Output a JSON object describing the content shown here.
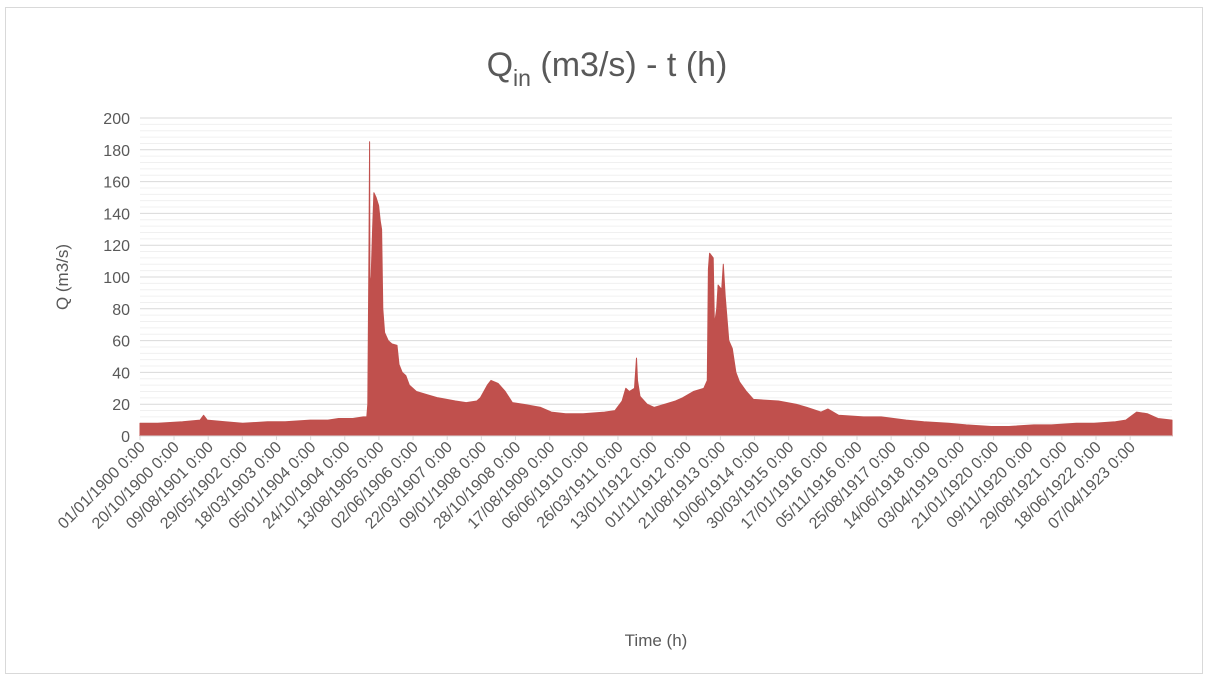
{
  "chart_data": {
    "type": "area",
    "title": {
      "main": "Q",
      "subscript": "in",
      "rest": " (m3/s) - t (h)"
    },
    "xlabel": "Time (h)",
    "ylabel": "Q (m3/s)",
    "ylim": [
      0,
      200
    ],
    "yticks": [
      0,
      20,
      40,
      60,
      80,
      100,
      120,
      140,
      160,
      180,
      200
    ],
    "xlim": [
      "1900-01-01",
      "1924-03-31"
    ],
    "xtick_dates": [
      "1900-01-01",
      "1900-10-20",
      "1901-08-09",
      "1902-05-29",
      "1903-03-18",
      "1904-01-05",
      "1904-10-24",
      "1905-08-13",
      "1906-06-02",
      "1907-03-22",
      "1908-01-09",
      "1908-10-28",
      "1909-08-17",
      "1910-06-06",
      "1911-03-26",
      "1912-01-13",
      "1912-11-01",
      "1913-08-21",
      "1914-06-10",
      "1915-03-30",
      "1916-01-17",
      "1916-11-05",
      "1917-08-25",
      "1918-06-14",
      "1919-04-03",
      "1920-01-21",
      "1920-11-09",
      "1921-08-29",
      "1922-06-18",
      "1923-04-07"
    ],
    "xtick_labels": [
      "01/01/1900 0:00",
      "20/10/1900 0:00",
      "09/08/1901 0:00",
      "29/05/1902 0:00",
      "18/03/1903 0:00",
      "05/01/1904 0:00",
      "24/10/1904 0:00",
      "13/08/1905 0:00",
      "02/06/1906 0:00",
      "22/03/1907 0:00",
      "09/01/1908 0:00",
      "28/10/1908 0:00",
      "17/08/1909 0:00",
      "06/06/1910 0:00",
      "26/03/1911 0:00",
      "13/01/1912 0:00",
      "01/11/1912 0:00",
      "21/08/1913 0:00",
      "10/06/1914 0:00",
      "30/03/1915 0:00",
      "17/01/1916 0:00",
      "05/11/1916 0:00",
      "25/08/1917 0:00",
      "14/06/1918 0:00",
      "03/04/1919 0:00",
      "21/01/1920 0:00",
      "09/11/1920 0:00",
      "29/08/1921 0:00",
      "18/06/1922 0:00",
      "07/04/1923 0:00"
    ],
    "grid": {
      "major_y": true,
      "minor_y": true,
      "x": false
    },
    "legend": "none",
    "series": [
      {
        "color": "#c0504d",
        "points": [
          [
            "1900-01-01",
            8
          ],
          [
            "1900-06-01",
            8
          ],
          [
            "1901-01-01",
            9
          ],
          [
            "1901-06-01",
            10
          ],
          [
            "1901-07-01",
            13
          ],
          [
            "1901-08-01",
            10
          ],
          [
            "1902-01-01",
            9
          ],
          [
            "1902-06-01",
            8
          ],
          [
            "1903-01-01",
            9
          ],
          [
            "1903-06-01",
            9
          ],
          [
            "1904-01-01",
            10
          ],
          [
            "1904-06-01",
            10
          ],
          [
            "1904-09-01",
            11
          ],
          [
            "1905-01-01",
            11
          ],
          [
            "1905-04-01",
            12
          ],
          [
            "1905-05-01",
            12
          ],
          [
            "1905-05-10",
            20
          ],
          [
            "1905-05-20",
            120
          ],
          [
            "1905-05-25",
            185
          ],
          [
            "1905-05-28",
            100
          ],
          [
            "1905-06-05",
            95
          ],
          [
            "1905-06-20",
            130
          ],
          [
            "1905-07-01",
            153
          ],
          [
            "1905-07-20",
            150
          ],
          [
            "1905-08-10",
            145
          ],
          [
            "1905-08-25",
            135
          ],
          [
            "1905-09-05",
            130
          ],
          [
            "1905-09-15",
            80
          ],
          [
            "1905-10-01",
            65
          ],
          [
            "1905-11-01",
            60
          ],
          [
            "1905-12-01",
            58
          ],
          [
            "1906-01-15",
            57
          ],
          [
            "1906-02-01",
            45
          ],
          [
            "1906-03-01",
            40
          ],
          [
            "1906-04-01",
            38
          ],
          [
            "1906-05-01",
            32
          ],
          [
            "1906-07-01",
            28
          ],
          [
            "1906-10-01",
            26
          ],
          [
            "1907-01-01",
            24
          ],
          [
            "1907-06-01",
            22
          ],
          [
            "1907-09-01",
            21
          ],
          [
            "1907-12-01",
            22
          ],
          [
            "1908-01-01",
            24
          ],
          [
            "1908-03-01",
            32
          ],
          [
            "1908-04-01",
            35
          ],
          [
            "1908-06-01",
            33
          ],
          [
            "1908-08-01",
            28
          ],
          [
            "1908-10-01",
            21
          ],
          [
            "1909-01-01",
            20
          ],
          [
            "1909-06-01",
            18
          ],
          [
            "1909-09-01",
            15
          ],
          [
            "1910-01-01",
            14
          ],
          [
            "1910-06-01",
            14
          ],
          [
            "1910-12-01",
            15
          ],
          [
            "1911-03-01",
            16
          ],
          [
            "1911-05-01",
            22
          ],
          [
            "1911-06-01",
            30
          ],
          [
            "1911-07-01",
            28
          ],
          [
            "1911-08-15",
            30
          ],
          [
            "1911-09-01",
            49
          ],
          [
            "1911-09-10",
            35
          ],
          [
            "1911-10-01",
            25
          ],
          [
            "1911-12-01",
            20
          ],
          [
            "1912-02-01",
            18
          ],
          [
            "1912-05-01",
            20
          ],
          [
            "1912-08-01",
            22
          ],
          [
            "1912-10-01",
            24
          ],
          [
            "1913-01-01",
            28
          ],
          [
            "1913-04-01",
            30
          ],
          [
            "1913-05-01",
            35
          ],
          [
            "1913-05-10",
            105
          ],
          [
            "1913-05-20",
            115
          ],
          [
            "1913-06-20",
            112
          ],
          [
            "1913-07-01",
            70
          ],
          [
            "1913-07-20",
            80
          ],
          [
            "1913-08-01",
            95
          ],
          [
            "1913-09-01",
            92
          ],
          [
            "1913-09-15",
            108
          ],
          [
            "1913-10-01",
            88
          ],
          [
            "1913-11-01",
            60
          ],
          [
            "1913-12-01",
            55
          ],
          [
            "1914-01-01",
            40
          ],
          [
            "1914-02-01",
            34
          ],
          [
            "1914-04-01",
            28
          ],
          [
            "1914-06-01",
            23
          ],
          [
            "1915-01-01",
            22
          ],
          [
            "1915-06-01",
            20
          ],
          [
            "1915-09-01",
            18
          ],
          [
            "1916-01-01",
            15
          ],
          [
            "1916-03-01",
            17
          ],
          [
            "1916-06-01",
            13
          ],
          [
            "1917-01-01",
            12
          ],
          [
            "1917-06-01",
            12
          ],
          [
            "1918-01-01",
            10
          ],
          [
            "1918-06-01",
            9
          ],
          [
            "1919-01-01",
            8
          ],
          [
            "1919-06-01",
            7
          ],
          [
            "1920-01-01",
            6
          ],
          [
            "1920-06-01",
            6
          ],
          [
            "1921-01-01",
            7
          ],
          [
            "1921-06-01",
            7
          ],
          [
            "1922-01-01",
            8
          ],
          [
            "1922-06-01",
            8
          ],
          [
            "1922-12-01",
            9
          ],
          [
            "1923-03-01",
            10
          ],
          [
            "1923-06-01",
            15
          ],
          [
            "1923-09-01",
            14
          ],
          [
            "1923-12-01",
            11
          ],
          [
            "1924-03-31",
            10
          ]
        ]
      }
    ]
  }
}
